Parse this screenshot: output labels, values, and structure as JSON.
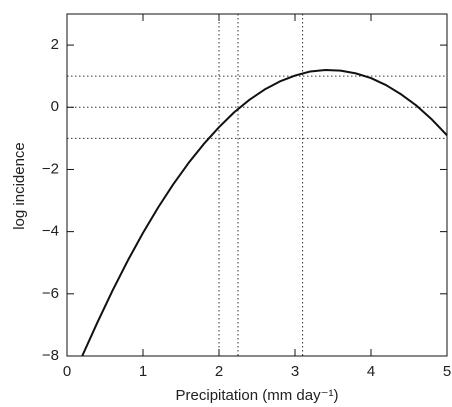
{
  "chart_data": {
    "type": "line",
    "x_label": "Precipitation (mm day⁻¹)",
    "y_label": "log incidence",
    "x": [
      0.2,
      0.4,
      0.6,
      0.8,
      1.0,
      1.2,
      1.4,
      1.6,
      1.8,
      2.0,
      2.2,
      2.4,
      2.6,
      2.8,
      3.0,
      3.2,
      3.4,
      3.6,
      3.8,
      4.0,
      4.2,
      4.4,
      4.6,
      4.8,
      5.0
    ],
    "series": [
      {
        "color": "#111111",
        "values": [
          -8.0,
          -6.92,
          -5.89,
          -4.93,
          -4.04,
          -3.22,
          -2.47,
          -1.79,
          -1.18,
          -0.64,
          -0.16,
          0.24,
          0.57,
          0.83,
          1.02,
          1.15,
          1.2,
          1.18,
          1.09,
          0.94,
          0.71,
          0.41,
          0.05,
          -0.39,
          -0.9
        ]
      }
    ],
    "xlim": [
      0,
      5
    ],
    "ylim": [
      -8,
      3
    ],
    "xticks": [
      0,
      1,
      2,
      3,
      4,
      5
    ],
    "yticks": [
      {
        "value": -8,
        "label": "−8"
      },
      {
        "value": -6,
        "label": "−6"
      },
      {
        "value": -4,
        "label": "−4"
      },
      {
        "value": -2,
        "label": "−2"
      },
      0,
      2
    ],
    "vlines": [
      2.0,
      2.25,
      3.1
    ],
    "hlines": [
      -1,
      0,
      1
    ]
  }
}
